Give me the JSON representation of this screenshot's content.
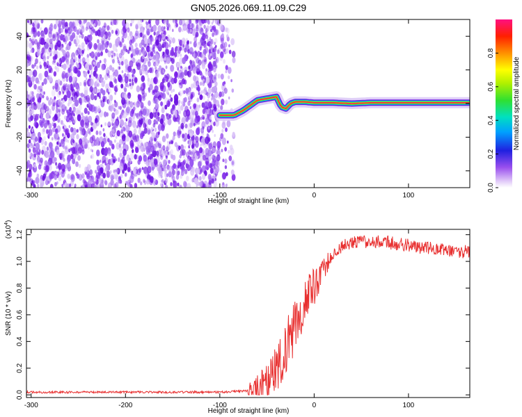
{
  "title": "GN05.2026.069.11.09.C29",
  "colors": {
    "snr_line": "#e83030",
    "scatter_purple": "#7a1ee8",
    "ridge_core": "#e8204a"
  },
  "chart_data": [
    {
      "type": "heatmap",
      "name": "spectrogram",
      "title": "GN05.2026.069.11.09.C29",
      "xlabel": "Height of straight line (km)",
      "ylabel": "Frequency (Hz)",
      "xlim": [
        -305,
        165
      ],
      "ylim": [
        -50,
        50
      ],
      "xticks": [
        -300,
        -200,
        -100,
        0,
        100
      ],
      "yticks": [
        -40,
        -20,
        0,
        20,
        40
      ],
      "grid": false,
      "colorbar": {
        "label": "Normalized spectral amplitude",
        "range": [
          0,
          1
        ],
        "ticks": [
          0.0,
          0.2,
          0.4,
          0.6,
          0.8
        ],
        "tick_labels": [
          "0.0",
          "0.2",
          "0.4",
          "0.6",
          "0.8"
        ],
        "colormap": "rainbow"
      },
      "noise_region": {
        "x": [
          -305,
          -85
        ],
        "y": [
          -50,
          50
        ],
        "amplitude": 0.2
      },
      "ridge": {
        "x": [
          -100,
          -85,
          -75,
          -60,
          -50,
          -40,
          -35,
          -30,
          -25,
          -20,
          -15,
          -10,
          0,
          20,
          40,
          60,
          80,
          100,
          120,
          140,
          165
        ],
        "frequency": [
          -7,
          -7,
          -4,
          2,
          3,
          4,
          -2,
          -3,
          0,
          1,
          1,
          1,
          0.5,
          0.5,
          0,
          0.5,
          0.5,
          0.5,
          0.5,
          0.5,
          0.5
        ]
      }
    },
    {
      "type": "line",
      "name": "snr",
      "xlabel": "Height of straight line (km)",
      "ylabel": "SNR (10 * v/v)",
      "ylabel_multiplier": "(x10",
      "ylabel_exponent": "4",
      "xlim": [
        -305,
        165
      ],
      "ylim": [
        -0.02,
        1.24
      ],
      "xticks": [
        -300,
        -200,
        -100,
        0,
        100
      ],
      "yticks": [
        0.0,
        0.2,
        0.4,
        0.6,
        0.8,
        1.0,
        1.2
      ],
      "grid": false,
      "envelope": {
        "x": [
          -305,
          -100,
          -70,
          -60,
          -50,
          -40,
          -30,
          -20,
          -10,
          0,
          10,
          20,
          30,
          40,
          60,
          80,
          100,
          120,
          140,
          165
        ],
        "y": [
          0.02,
          0.02,
          0.03,
          0.05,
          0.1,
          0.2,
          0.35,
          0.52,
          0.68,
          0.82,
          0.95,
          1.05,
          1.12,
          1.14,
          1.15,
          1.14,
          1.12,
          1.1,
          1.08,
          1.07
        ]
      },
      "series": [
        {
          "values": []
        }
      ]
    }
  ]
}
